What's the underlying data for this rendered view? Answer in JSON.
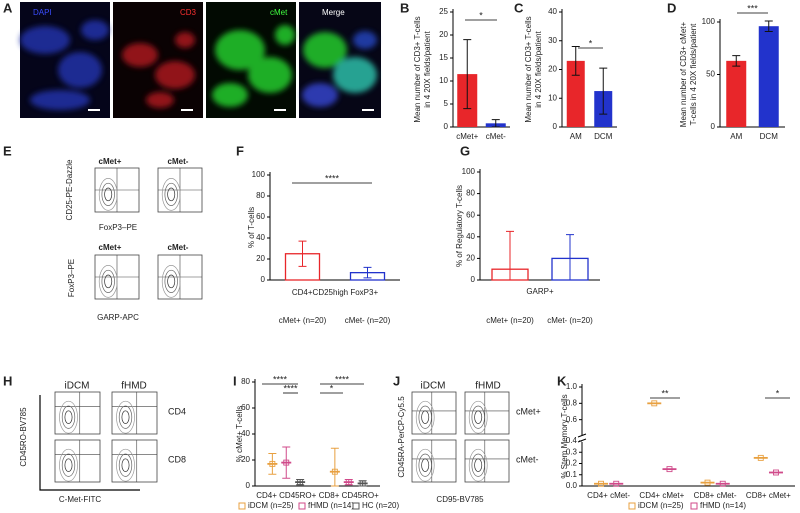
{
  "microscopy": {
    "label": "A",
    "channels": [
      "DAPI",
      "CD3",
      "cMet",
      "Merge"
    ]
  },
  "flow_E": {
    "label": "E",
    "top_columns": [
      "cMet+",
      "cMet-"
    ],
    "top_y_label": "CD25-PE-Dazzle",
    "top_x_label": "FoxP3–PE",
    "bottom_columns": [
      "cMet+",
      "cMet-"
    ],
    "bottom_y_label": "FoxP3–PE",
    "bottom_x_label": "GARP-APC"
  },
  "flow_H": {
    "label": "H",
    "columns": [
      "iDCM",
      "fHMD"
    ],
    "rows": [
      "CD4",
      "CD8"
    ],
    "y_label": "CD45RO-BV785",
    "x_label": "C-Met-FITC"
  },
  "flow_J": {
    "label": "J",
    "columns": [
      "iDCM",
      "fHMD"
    ],
    "rows": [
      "cMet+",
      "cMet-"
    ],
    "y_label": "CD45RA-PerCP-Cy5.5",
    "x_label": "CD95-BV785"
  },
  "chart_data": [
    {
      "type": "bar",
      "label": "B",
      "style": "filled",
      "y_label": [
        "Mean number of CD3+ T-cells",
        "in 4 20X fields/patient"
      ],
      "categories": [
        "cMet+",
        "cMet-"
      ],
      "values": [
        11.5,
        0.8
      ],
      "errors": [
        7.5,
        0.8
      ],
      "colors": [
        "#e8262a",
        "#2233cc"
      ],
      "ylim": [
        0,
        25
      ],
      "yticks": [
        0,
        5,
        10,
        15,
        20,
        25
      ],
      "annotations": [
        "*"
      ]
    },
    {
      "type": "bar",
      "label": "C",
      "style": "filled",
      "y_label": [
        "Mean number of CD3+ T-cells",
        "in 4 20X fields/patient"
      ],
      "categories": [
        "AM",
        "DCM"
      ],
      "values": [
        23,
        12.5
      ],
      "errors": [
        5,
        8
      ],
      "colors": [
        "#e8262a",
        "#2233cc"
      ],
      "ylim": [
        0,
        40
      ],
      "yticks": [
        0,
        10,
        20,
        30,
        40
      ],
      "annotations": [
        "*"
      ]
    },
    {
      "type": "bar",
      "label": "D",
      "style": "filled",
      "y_label": [
        "Mean number of CD3+ cMet+",
        "T-cells in 4 20X fields/patient"
      ],
      "categories": [
        "AM",
        "DCM"
      ],
      "values": [
        63,
        96
      ],
      "errors": [
        5,
        5
      ],
      "colors": [
        "#e8262a",
        "#2233cc"
      ],
      "ylim": [
        0,
        100
      ],
      "yticks": [
        0,
        50,
        100
      ],
      "annotations": [
        "***"
      ]
    },
    {
      "type": "bar",
      "label": "F",
      "style": "outline",
      "y_label": [
        "% of  T-cells"
      ],
      "x_label": "CD4+CD25high FoxP3+",
      "categories": [
        "cMet+ (n=20)",
        "cMet- (n=20)"
      ],
      "values": [
        25,
        7
      ],
      "errors": [
        12,
        5
      ],
      "colors": [
        "#e8262a",
        "#2233cc"
      ],
      "ylim": [
        0,
        100
      ],
      "yticks": [
        0,
        20,
        40,
        60,
        80,
        100
      ],
      "annotations": [
        "****"
      ]
    },
    {
      "type": "bar",
      "label": "G",
      "style": "outline",
      "y_label": [
        "% of Regulatory T-cells"
      ],
      "x_label": "GARP+",
      "categories": [
        "cMet+ (n=20)",
        "cMet- (n=20)"
      ],
      "values": [
        10,
        20
      ],
      "errors": [
        35,
        22
      ],
      "colors": [
        "#e8262a",
        "#2233cc"
      ],
      "ylim": [
        0,
        100
      ],
      "yticks": [
        0,
        20,
        40,
        60,
        80,
        100
      ],
      "annotations": []
    },
    {
      "type": "dot",
      "label": "I",
      "y_label": [
        "% cMet+ T-cells"
      ],
      "categories": [
        "CD4+ CD45RO+",
        "CD8+ CD45RO+"
      ],
      "series": [
        {
          "name": "iDCM (n=25)",
          "color": "#e8a040",
          "values": [
            17,
            11
          ],
          "errors": [
            8,
            18
          ]
        },
        {
          "name": "fHMD (n=14)",
          "color": "#d04a8a",
          "values": [
            18,
            3
          ],
          "errors": [
            12,
            2
          ]
        },
        {
          "name": "HC (n=20)",
          "color": "#555555",
          "values": [
            3,
            2
          ],
          "errors": [
            2,
            2
          ]
        }
      ],
      "ylim": [
        0,
        80
      ],
      "yticks": [
        0,
        20,
        40,
        60,
        80
      ],
      "annotations": [
        "****",
        "****",
        "****",
        "*"
      ]
    },
    {
      "type": "dot",
      "label": "K",
      "y_label": [
        "% Stem Memory T-cells"
      ],
      "categories": [
        "CD4+ cMet-",
        "CD4+ cMet+",
        "CD8+ cMet-",
        "CD8+ cMet+"
      ],
      "series": [
        {
          "name": "iDCM (n=25)",
          "color": "#e8a040",
          "values": [
            0.02,
            0.8,
            0.03,
            0.25
          ]
        },
        {
          "name": "fHMD (n=14)",
          "color": "#d04a8a",
          "values": [
            0.02,
            0.15,
            0.02,
            0.12
          ]
        }
      ],
      "ylim": [
        0,
        1
      ],
      "ybreak": 0.4,
      "yticks": [
        {
          "value": 0,
          "label": "0.0"
        },
        {
          "value": 0.1,
          "label": "0.1"
        },
        {
          "value": 0.2,
          "label": "0.2"
        },
        {
          "value": 0.3,
          "label": "0.3"
        },
        {
          "value": 0.4,
          "label": "0.4"
        },
        {
          "value": 0.6,
          "label": "0.6"
        },
        {
          "value": 0.8,
          "label": "0.8"
        },
        {
          "value": 1,
          "label": "1.0"
        }
      ],
      "annotations": [
        "**",
        "*"
      ]
    }
  ]
}
